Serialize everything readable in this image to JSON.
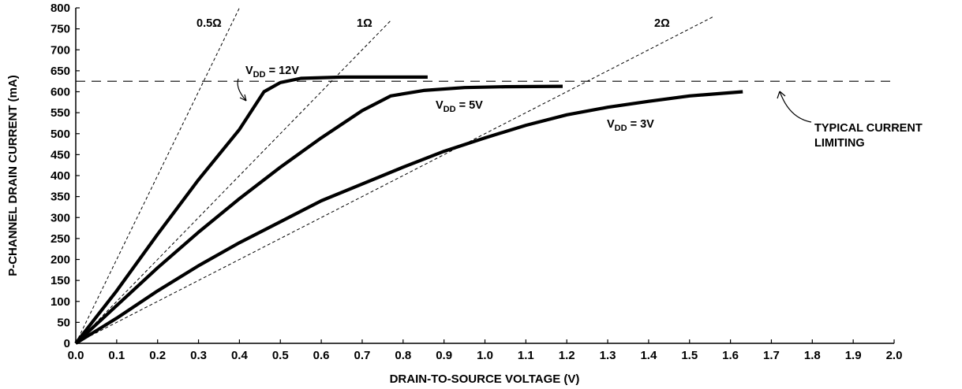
{
  "chart_data": {
    "type": "line",
    "title": "",
    "xlabel": "DRAIN-TO-SOURCE VOLTAGE (V)",
    "ylabel": "P-CHANNEL DRAIN CURRENT (mA)",
    "xlim": [
      0,
      2.0
    ],
    "ylim": [
      0,
      800
    ],
    "x_ticks": [
      "0.0",
      "0.1",
      "0.2",
      "0.3",
      "0.4",
      "0.5",
      "0.6",
      "0.7",
      "0.8",
      "0.9",
      "1.0",
      "1.1",
      "1.2",
      "1.3",
      "1.4",
      "1.5",
      "1.6",
      "1.7",
      "1.8",
      "1.9",
      "2.0"
    ],
    "y_ticks": [
      "0",
      "50",
      "100",
      "150",
      "200",
      "250",
      "300",
      "350",
      "400",
      "450",
      "500",
      "550",
      "600",
      "650",
      "700",
      "750",
      "800"
    ],
    "grid": false,
    "series": [
      {
        "name": "VDD = 12V",
        "label_main": "V",
        "label_sub": "DD",
        "label_rest": " = 12V",
        "x": [
          0.0,
          0.1,
          0.2,
          0.3,
          0.4,
          0.46,
          0.5,
          0.55,
          0.65,
          0.75,
          0.86
        ],
        "y": [
          0,
          125,
          260,
          390,
          510,
          600,
          622,
          632,
          635,
          635,
          635
        ]
      },
      {
        "name": "VDD = 5V",
        "label_main": "V",
        "label_sub": "DD",
        "label_rest": " = 5V",
        "x": [
          0.0,
          0.1,
          0.2,
          0.3,
          0.4,
          0.5,
          0.6,
          0.7,
          0.77,
          0.85,
          0.95,
          1.05,
          1.19
        ],
        "y": [
          0,
          90,
          180,
          265,
          345,
          420,
          490,
          555,
          590,
          603,
          610,
          612,
          613
        ]
      },
      {
        "name": "VDD = 3V",
        "label_main": "V",
        "label_sub": "DD",
        "label_rest": " = 3V",
        "x": [
          0.0,
          0.1,
          0.2,
          0.3,
          0.4,
          0.5,
          0.6,
          0.7,
          0.8,
          0.9,
          1.0,
          1.1,
          1.2,
          1.3,
          1.4,
          1.5,
          1.63
        ],
        "y": [
          0,
          60,
          125,
          185,
          240,
          290,
          340,
          380,
          420,
          458,
          490,
          520,
          545,
          563,
          577,
          590,
          600
        ]
      }
    ],
    "resistance_lines": [
      {
        "label": "0.5Ω",
        "x": [
          0.0,
          0.4
        ],
        "y": [
          0,
          800
        ]
      },
      {
        "label": "1Ω",
        "x": [
          0.0,
          0.77
        ],
        "y": [
          0,
          770
        ]
      },
      {
        "label": "2Ω",
        "x": [
          0.0,
          1.56
        ],
        "y": [
          0,
          780
        ]
      }
    ],
    "current_limit": {
      "y": 625,
      "label_line1": "TYPICAL CURRENT",
      "label_line2": "LIMITING"
    }
  }
}
